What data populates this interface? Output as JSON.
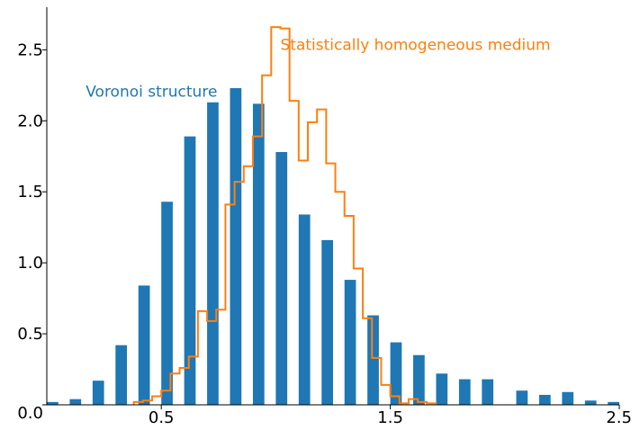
{
  "chart_data": {
    "type": "bar",
    "xlim": [
      0,
      2.5
    ],
    "ylim": [
      0,
      2.8
    ],
    "grid": false,
    "x_ticks": [
      {
        "value": 0.5,
        "label": "0.5"
      },
      {
        "value": 1.5,
        "label": "1.5"
      },
      {
        "value": 2.5,
        "label": "2.5"
      }
    ],
    "y_ticks": [
      {
        "value": 0.0,
        "label": "0.0"
      },
      {
        "value": 0.5,
        "label": "0.5"
      },
      {
        "value": 1.0,
        "label": "1.0"
      },
      {
        "value": 1.5,
        "label": "1.5"
      },
      {
        "value": 2.0,
        "label": "2.0"
      },
      {
        "value": 2.5,
        "label": "2.5"
      }
    ],
    "series": [
      {
        "name": "Voronoi structure",
        "kind": "bar",
        "color": "#1f77b4",
        "bar_width": 0.05,
        "x": [
          0.025,
          0.125,
          0.225,
          0.325,
          0.425,
          0.525,
          0.625,
          0.725,
          0.825,
          0.925,
          1.025,
          1.125,
          1.225,
          1.325,
          1.425,
          1.525,
          1.625,
          1.725,
          1.825,
          1.925,
          2.075,
          2.175,
          2.275,
          2.375,
          2.475
        ],
        "values": [
          0.02,
          0.04,
          0.17,
          0.42,
          0.84,
          1.43,
          1.89,
          2.13,
          2.23,
          2.12,
          1.78,
          1.34,
          1.16,
          0.88,
          0.63,
          0.44,
          0.35,
          0.22,
          0.18,
          0.18,
          0.1,
          0.07,
          0.09,
          0.03,
          0.02
        ]
      },
      {
        "name": "Statistically homogeneous medium",
        "kind": "step",
        "color": "#ff7f0e",
        "edges": [
          0.38,
          0.42,
          0.46,
          0.5,
          0.54,
          0.58,
          0.62,
          0.66,
          0.7,
          0.74,
          0.78,
          0.82,
          0.86,
          0.9,
          0.94,
          0.98,
          1.02,
          1.06,
          1.1,
          1.14,
          1.18,
          1.22,
          1.26,
          1.3,
          1.34,
          1.38,
          1.42,
          1.46,
          1.5,
          1.54,
          1.58,
          1.62,
          1.66,
          1.7
        ],
        "values": [
          0.02,
          0.03,
          0.06,
          0.1,
          0.22,
          0.26,
          0.34,
          0.66,
          0.59,
          0.67,
          1.41,
          1.57,
          1.68,
          1.89,
          2.32,
          2.66,
          2.65,
          2.14,
          1.72,
          1.99,
          2.08,
          1.7,
          1.5,
          1.33,
          0.96,
          0.61,
          0.33,
          0.14,
          0.06,
          0.01,
          0.04,
          0.02,
          0.01
        ]
      }
    ],
    "annotations": [
      {
        "text": "Voronoi structure",
        "series": 0,
        "x": 0.17,
        "y": 2.17
      },
      {
        "text": "Statistically homogeneous medium",
        "series": 1,
        "x": 1.02,
        "y": 2.5
      }
    ]
  }
}
